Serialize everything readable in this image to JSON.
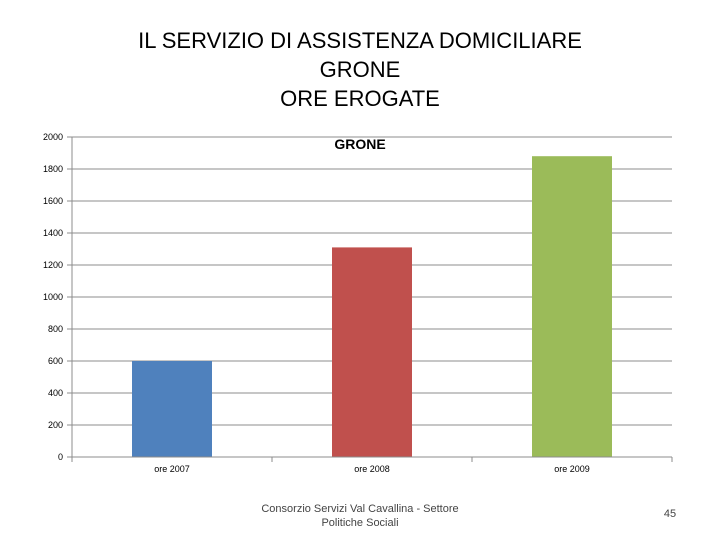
{
  "slide": {
    "title_lines": [
      "IL SERVIZIO DI ASSISTENZA DOMICILIARE",
      "GRONE",
      "ORE EROGATE"
    ],
    "footer_lines": [
      "Consorzio Servizi Val Cavallina - Settore",
      "Politiche Sociali"
    ],
    "page_number": "45"
  },
  "chart_data": {
    "type": "bar",
    "title": "GRONE",
    "categories": [
      "ore 2007",
      "ore 2008",
      "ore 2009"
    ],
    "values": [
      600,
      1310,
      1880
    ],
    "colors": [
      "#4F81BD",
      "#C0504D",
      "#9BBB59"
    ],
    "ylim": [
      0,
      2000
    ],
    "yticks": [
      0,
      200,
      400,
      600,
      800,
      1000,
      1200,
      1400,
      1600,
      1800,
      2000
    ],
    "grid": true,
    "legend": "none",
    "xlabel": "",
    "ylabel": ""
  }
}
